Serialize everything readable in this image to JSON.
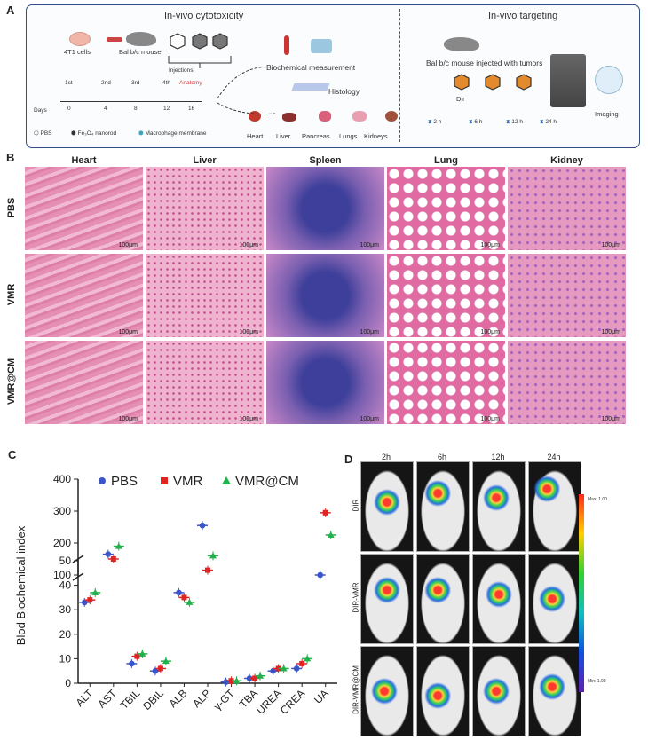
{
  "panel_labels": {
    "a": "A",
    "b": "B",
    "c": "C",
    "d": "D"
  },
  "panelA": {
    "left_title": "In-vivo cytotoxicity",
    "right_title": "In-vivo targeting",
    "cells": "4T1 cells",
    "mouse": "Bal b/c mouse",
    "injections": "Injections",
    "days_label": "Days",
    "days": [
      "0",
      "4",
      "8",
      "12",
      "16"
    ],
    "dose_marks": [
      "1st",
      "2nd",
      "3rd",
      "4th"
    ],
    "anatomy": "Anatomy",
    "biochem": "Biochemical measurement",
    "histology": "Histology",
    "organs": [
      "Heart",
      "Liver",
      "Pancreas",
      "Lungs",
      "Kidneys"
    ],
    "legend": [
      "PBS",
      "Fe₃O₄ nanorod",
      "Macrophage membrane"
    ],
    "target_mouse": "Bal b/c mouse injected with tumors",
    "dir": "Dir",
    "times": [
      "2 h",
      "6 h",
      "12 h",
      "24 h"
    ],
    "imaging": "Imaging"
  },
  "panelB": {
    "columns": [
      "Heart",
      "Liver",
      "Spleen",
      "Lung",
      "Kidney"
    ],
    "rows": [
      "PBS",
      "VMR",
      "VMR@CM"
    ],
    "scale": "100μm"
  },
  "panelC": {
    "legend": [
      "PBS",
      "VMR",
      "VMR@CM"
    ],
    "colors": {
      "PBS": "#3a55c8",
      "VMR": "#e02424",
      "VMR@CM": "#22b14c"
    }
  },
  "panelD": {
    "times": [
      "2h",
      "6h",
      "12h",
      "24h"
    ],
    "rows": [
      "DIR",
      "DIR-VMR",
      "DIR-VMR@CM"
    ],
    "colorbar_max": "Max: 1.00",
    "colorbar_min": "Min: 1.00"
  },
  "chart_data": {
    "type": "scatter",
    "ylabel": "Blod Biochemical index",
    "categories": [
      "ALT",
      "AST",
      "TBIL",
      "DBIL",
      "ALB",
      "ALP",
      "γ-GT",
      "TBA",
      "UREA",
      "CREA",
      "UA"
    ],
    "y_lower_ticks": [
      0,
      10,
      20,
      30,
      40,
      50
    ],
    "y_upper_ticks": [
      100,
      200,
      300,
      400
    ],
    "axis_break": [
      50,
      100
    ],
    "series": [
      {
        "name": "PBS",
        "values": [
          33,
          165,
          8,
          5,
          37,
          255,
          0.5,
          2,
          5,
          6,
          100
        ]
      },
      {
        "name": "VMR",
        "values": [
          34,
          150,
          11,
          6,
          35,
          115,
          1,
          2,
          6,
          8,
          295
        ]
      },
      {
        "name": "VMR@CM",
        "values": [
          37,
          190,
          12,
          9,
          33,
          160,
          1,
          3,
          6,
          10,
          225
        ]
      }
    ]
  }
}
